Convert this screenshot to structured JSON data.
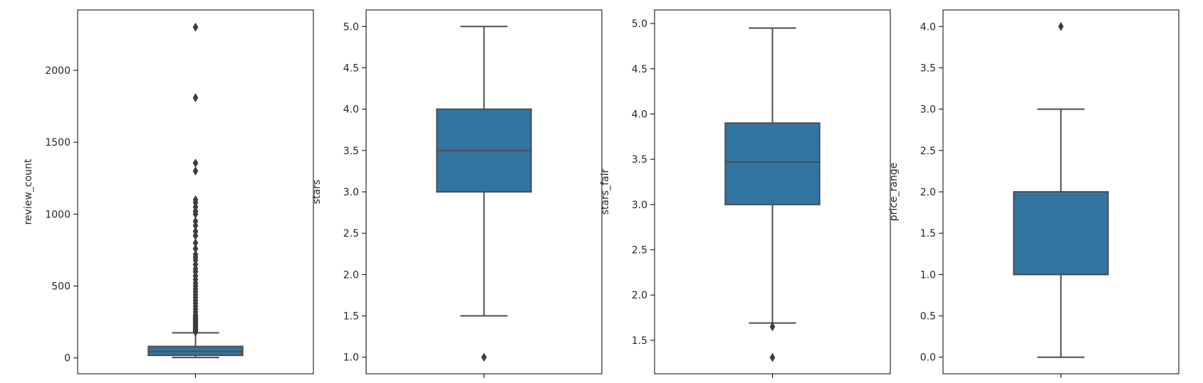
{
  "chart_data": [
    {
      "type": "box",
      "ylabel": "review_count",
      "yticks": [
        0,
        500,
        1000,
        1500,
        2000
      ],
      "ylim": [
        -110,
        2420
      ],
      "box": {
        "q1": 18,
        "median": 45,
        "q3": 80,
        "whisker_low": 3,
        "whisker_high": 175,
        "color": "#3274a1"
      },
      "outliers": [
        180,
        190,
        200,
        210,
        220,
        230,
        240,
        250,
        260,
        270,
        280,
        290,
        300,
        320,
        340,
        360,
        380,
        400,
        420,
        440,
        460,
        480,
        500,
        520,
        545,
        570,
        600,
        620,
        650,
        680,
        700,
        720,
        760,
        800,
        850,
        880,
        920,
        950,
        1000,
        1020,
        1050,
        1080,
        1100,
        1300,
        1355,
        1810,
        2300
      ]
    },
    {
      "type": "box",
      "ylabel": "stars",
      "yticks": [
        1.0,
        1.5,
        2.0,
        2.5,
        3.0,
        3.5,
        4.0,
        4.5,
        5.0
      ],
      "ylim": [
        0.8,
        5.2
      ],
      "box": {
        "q1": 3.0,
        "median": 3.5,
        "q3": 4.0,
        "whisker_low": 1.5,
        "whisker_high": 5.0,
        "color": "#3274a1"
      },
      "outliers": [
        1.0
      ]
    },
    {
      "type": "box",
      "ylabel": "stars_fair",
      "yticks": [
        1.5,
        2.0,
        2.5,
        3.0,
        3.5,
        4.0,
        4.5,
        5.0
      ],
      "ylim": [
        1.13,
        5.15
      ],
      "box": {
        "q1": 3.0,
        "median": 3.47,
        "q3": 3.9,
        "whisker_low": 1.69,
        "whisker_high": 4.95,
        "color": "#3274a1"
      },
      "outliers": [
        1.65,
        1.31
      ]
    },
    {
      "type": "box",
      "ylabel": "price_range",
      "yticks": [
        0.0,
        0.5,
        1.0,
        1.5,
        2.0,
        2.5,
        3.0,
        3.5,
        4.0
      ],
      "ylim": [
        -0.2,
        4.2
      ],
      "box": {
        "q1": 1.0,
        "median": 2.0,
        "q3": 2.0,
        "whisker_low": 0.0,
        "whisker_high": 3.0,
        "color": "#3274a1"
      },
      "outliers": [
        4.0
      ]
    }
  ]
}
